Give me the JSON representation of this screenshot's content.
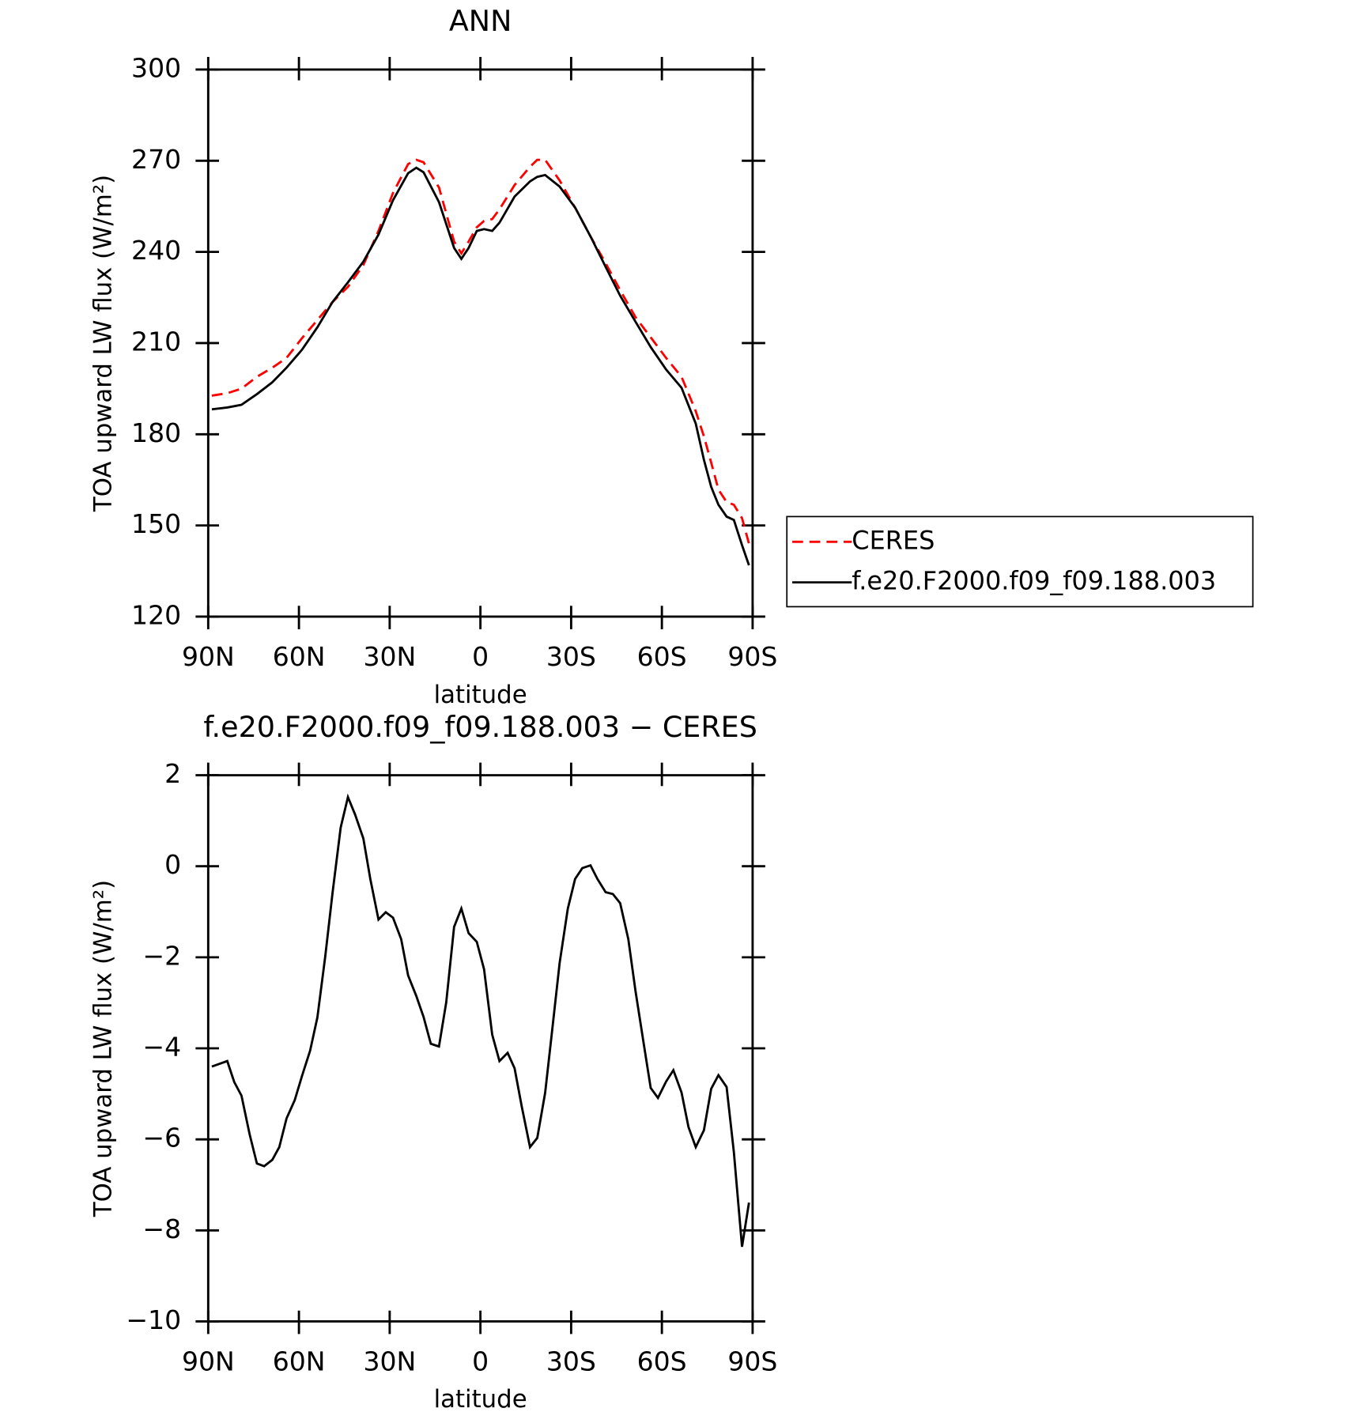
{
  "chart_data": [
    {
      "type": "line",
      "title": "ANN",
      "xlabel": "latitude",
      "ylabel": "TOA upward LW flux (W/m²)",
      "x": [
        88.8,
        83.7,
        79,
        73.9,
        68.8,
        64.1,
        59,
        53.9,
        48.9,
        43.8,
        38.7,
        33.7,
        28.9,
        23.9,
        21.2,
        18.8,
        13.7,
        8.7,
        6.3,
        3.9,
        1.2,
        -1.2,
        -3.9,
        -6.3,
        -11.3,
        -16.4,
        -18.8,
        -21.4,
        -26.2,
        -31.3,
        -36.4,
        -41.4,
        -46.2,
        -51.3,
        -56.3,
        -61.4,
        -66.5,
        -71.2,
        -73.9,
        -76.3,
        -78.7,
        -81.4,
        -83.8,
        -86.5,
        -88.8
      ],
      "series": [
        {
          "name": "CERES",
          "color": "#ff0000",
          "dashed": true,
          "values": [
            192.7,
            193.5,
            195,
            198.9,
            201.9,
            205.1,
            211.6,
            217.6,
            223.5,
            228.5,
            235.7,
            246.9,
            259.4,
            268.9,
            270.3,
            269.5,
            261.2,
            243.4,
            239.5,
            243.4,
            248.1,
            250.2,
            250.8,
            254,
            262,
            268,
            270.3,
            270.3,
            263.5,
            254.6,
            245.1,
            236.3,
            227.4,
            218.5,
            211.9,
            205.1,
            198.9,
            187.6,
            179.3,
            170.7,
            161.8,
            157.7,
            156.8,
            152.4,
            144
          ]
        },
        {
          "name": "f.e20.F2000.f09_f09.188.003",
          "color": "#000000",
          "dashed": false,
          "values": [
            188.2,
            188.8,
            189.7,
            193.2,
            197.1,
            201.9,
            207.8,
            215.2,
            223.5,
            230,
            236.8,
            245.7,
            257,
            265.9,
            267.7,
            266.2,
            256.4,
            241.3,
            237.7,
            241.3,
            246.9,
            247.5,
            246.9,
            249.6,
            258.2,
            263.2,
            264.7,
            265.3,
            261.5,
            254.6,
            245.1,
            235.1,
            225.6,
            217,
            208.7,
            201.3,
            195.3,
            183.5,
            171.6,
            162.7,
            156.8,
            152.9,
            151.8,
            143.5,
            136.9
          ]
        }
      ],
      "xlim": [
        90,
        -90
      ],
      "xticks": [
        {
          "value": 90,
          "label": "90N"
        },
        {
          "value": 60,
          "label": "60N"
        },
        {
          "value": 30,
          "label": "30N"
        },
        0,
        {
          "value": -30,
          "label": "30S"
        },
        {
          "value": -60,
          "label": "60S"
        },
        {
          "value": -90,
          "label": "90S"
        }
      ],
      "ylim": [
        120,
        300
      ],
      "yticks": [
        120,
        150,
        180,
        210,
        240,
        270,
        300
      ],
      "legend": "right"
    },
    {
      "type": "line",
      "title": "f.e20.F2000.f09_f09.188.003 − CERES",
      "xlabel": "latitude",
      "ylabel": "TOA upward LW flux (W/m²)",
      "x": [
        88.8,
        83.7,
        81.4,
        79,
        76.3,
        73.9,
        71.5,
        68.8,
        66.5,
        64.1,
        61.4,
        59,
        56.3,
        53.9,
        51.3,
        48.9,
        46.2,
        43.8,
        41.4,
        38.7,
        36.4,
        33.7,
        31.3,
        28.9,
        26.2,
        23.9,
        21.2,
        18.8,
        16.4,
        13.7,
        11.3,
        8.7,
        6.3,
        3.9,
        1.2,
        -1.2,
        -3.9,
        -6.3,
        -9,
        -11.3,
        -13.7,
        -16.4,
        -18.8,
        -21.4,
        -23.8,
        -26.2,
        -28.9,
        -31.3,
        -33.7,
        -36.4,
        -38.7,
        -41.4,
        -43.8,
        -46.2,
        -48.9,
        -51.3,
        -54,
        -56.3,
        -58.7,
        -61.4,
        -63.8,
        -66.5,
        -68.8,
        -71.2,
        -73.9,
        -76.3,
        -78.7,
        -81.4,
        -83.8,
        -86.5,
        -88.8
      ],
      "series": [
        {
          "name": "f.e20.F2000.f09_f09.188.003 − CERES",
          "color": "#000000",
          "dashed": false,
          "values": [
            -4.4,
            -4.28,
            -4.74,
            -5.04,
            -5.89,
            -6.53,
            -6.59,
            -6.45,
            -6.17,
            -5.54,
            -5.14,
            -4.61,
            -4.05,
            -3.32,
            -1.98,
            -0.59,
            0.85,
            1.52,
            1.13,
            0.61,
            -0.28,
            -1.17,
            -1.01,
            -1.13,
            -1.6,
            -2.4,
            -2.85,
            -3.31,
            -3.9,
            -3.96,
            -2.99,
            -1.33,
            -0.93,
            -1.47,
            -1.66,
            -2.26,
            -3.7,
            -4.28,
            -4.1,
            -4.44,
            -5.29,
            -6.17,
            -5.97,
            -4.98,
            -3.56,
            -2.12,
            -0.93,
            -0.28,
            -0.04,
            0.02,
            -0.28,
            -0.57,
            -0.61,
            -0.81,
            -1.6,
            -2.75,
            -3.9,
            -4.87,
            -5.09,
            -4.73,
            -4.48,
            -4.97,
            -5.73,
            -6.17,
            -5.8,
            -4.89,
            -4.59,
            -4.85,
            -6.28,
            -8.36,
            -7.39
          ]
        }
      ],
      "xlim": [
        90,
        -90
      ],
      "xticks": [
        {
          "value": 90,
          "label": "90N"
        },
        {
          "value": 60,
          "label": "60N"
        },
        {
          "value": 30,
          "label": "30N"
        },
        0,
        {
          "value": -30,
          "label": "30S"
        },
        {
          "value": -60,
          "label": "60S"
        },
        {
          "value": -90,
          "label": "90S"
        }
      ],
      "ylim": [
        -10,
        2
      ],
      "yticks": [
        {
          "value": -10,
          "label": "−10"
        },
        {
          "value": -8,
          "label": "−8"
        },
        {
          "value": -6,
          "label": "−6"
        },
        {
          "value": -4,
          "label": "−4"
        },
        {
          "value": -2,
          "label": "−2"
        },
        0,
        2
      ]
    }
  ]
}
